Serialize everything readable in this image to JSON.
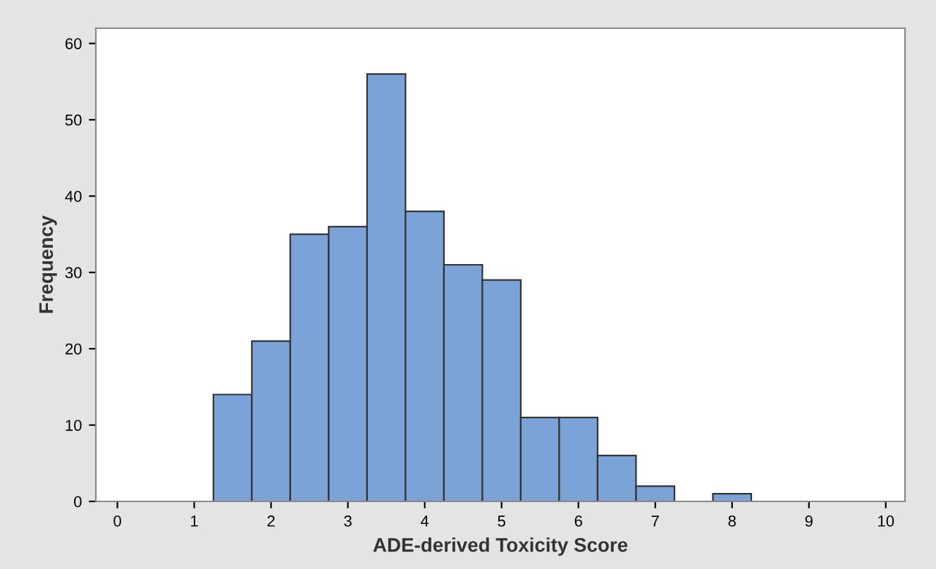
{
  "chart_data": {
    "type": "histogram",
    "xlabel": "ADE-derived Toxicity Score",
    "ylabel": "Frequency",
    "bins": [
      1.25,
      1.75,
      2.25,
      2.75,
      3.25,
      3.75,
      4.25,
      4.75,
      5.25,
      5.75,
      6.25,
      6.75,
      7.25,
      7.75,
      8.25
    ],
    "values": [
      14,
      21,
      35,
      36,
      56,
      38,
      31,
      29,
      11,
      11,
      6,
      2,
      0,
      1
    ],
    "color": "#7ba3d8",
    "xlim": [
      -0.28,
      10.25
    ],
    "ylim": [
      0,
      62
    ],
    "xticks": [
      0,
      1,
      2,
      3,
      4,
      5,
      6,
      7,
      8,
      9,
      10
    ],
    "yticks": [
      0,
      10,
      20,
      30,
      40,
      50,
      60
    ],
    "grid": false
  }
}
